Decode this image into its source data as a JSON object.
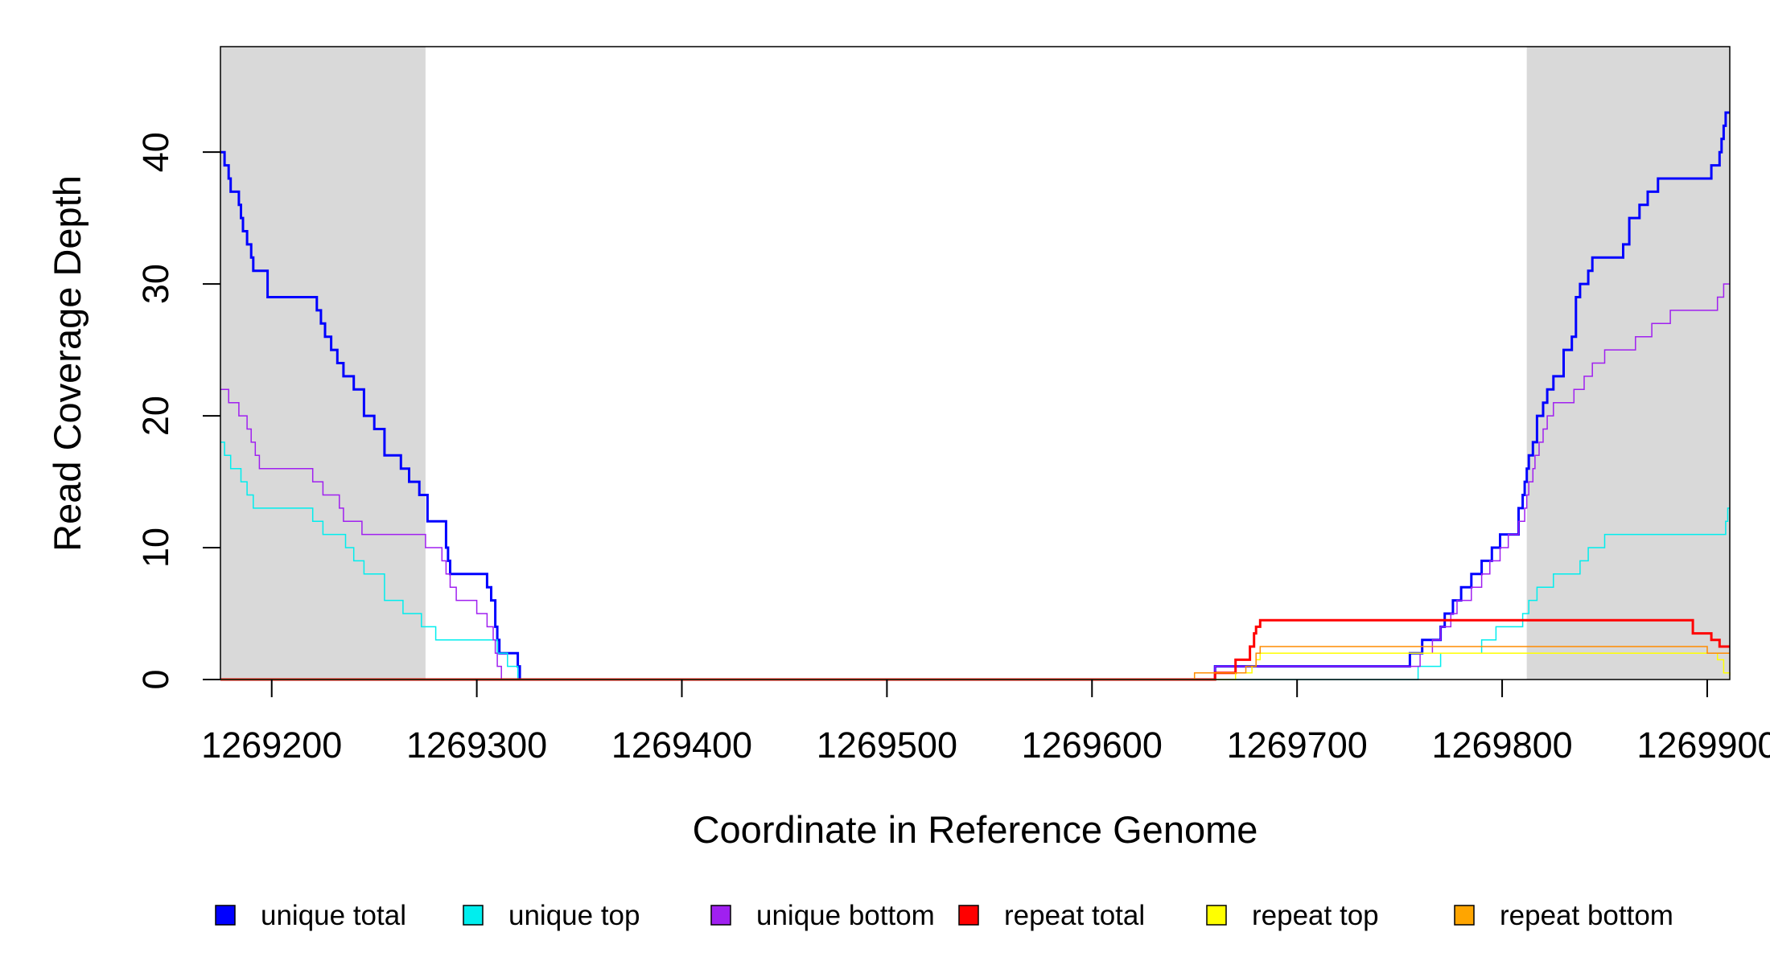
{
  "chart_data": {
    "type": "line",
    "title": "",
    "xlabel": "Coordinate in Reference Genome",
    "ylabel": "Read Coverage Depth",
    "xlim": [
      1269175,
      1269911
    ],
    "ylim": [
      0,
      48
    ],
    "x_ticks": [
      1269200,
      1269300,
      1269400,
      1269500,
      1269600,
      1269700,
      1269800,
      1269900
    ],
    "x_tick_labels": [
      "1269200",
      "1269300",
      "1269400",
      "1269500",
      "1269600",
      "1269700",
      "1269800",
      "1269900"
    ],
    "y_ticks": [
      0,
      10,
      20,
      30,
      40
    ],
    "y_tick_labels": [
      "0",
      "10",
      "20",
      "30",
      "40"
    ],
    "grid": false,
    "legend_position": "bottom",
    "shaded_regions": [
      {
        "x": [
          1269175,
          1269275
        ],
        "color": "#d9d9d9"
      },
      {
        "x": [
          1269812,
          1269911
        ],
        "color": "#d9d9d9"
      }
    ],
    "series": [
      {
        "name": "unique total",
        "color": "#0000ff",
        "width": 3,
        "x": [
          1269175,
          1269177,
          1269178,
          1269179,
          1269180,
          1269184,
          1269185,
          1269186,
          1269188,
          1269190,
          1269191,
          1269193,
          1269198,
          1269220,
          1269222,
          1269224,
          1269226,
          1269229,
          1269232,
          1269235,
          1269240,
          1269245,
          1269250,
          1269253,
          1269255,
          1269263,
          1269267,
          1269272,
          1269276,
          1269285,
          1269286,
          1269287,
          1269289,
          1269305,
          1269307,
          1269309,
          1269310,
          1269311,
          1269312,
          1269320,
          1269321,
          1269322,
          1269650,
          1269660,
          1269670,
          1269700,
          1269750,
          1269755,
          1269761,
          1269770,
          1269772,
          1269776,
          1269780,
          1269785,
          1269790,
          1269795,
          1269799,
          1269808,
          1269810,
          1269811,
          1269812,
          1269813,
          1269815,
          1269817,
          1269820,
          1269822,
          1269825,
          1269830,
          1269834,
          1269836,
          1269838,
          1269842,
          1269844,
          1269859,
          1269862,
          1269867,
          1269871,
          1269876,
          1269891,
          1269902,
          1269906,
          1269907,
          1269908,
          1269909,
          1269910,
          1269911
        ],
        "y": [
          40,
          39,
          39,
          38,
          37,
          36,
          35,
          34,
          33,
          32,
          31,
          31,
          29,
          29,
          28,
          27,
          26,
          25,
          24,
          23,
          22,
          20,
          19,
          19,
          17,
          16,
          15,
          14,
          12,
          10,
          9,
          8,
          8,
          7,
          6,
          4,
          3,
          2,
          2,
          1,
          0,
          0,
          0,
          1,
          1,
          1,
          1,
          2,
          3,
          4,
          5,
          6,
          7,
          8,
          9,
          10,
          11,
          13,
          14,
          15,
          16,
          17,
          18,
          20,
          21,
          22,
          23,
          25,
          26,
          29,
          30,
          31,
          32,
          33,
          35,
          36,
          37,
          38,
          38,
          39,
          40,
          41,
          42,
          43,
          43,
          43
        ]
      },
      {
        "name": "unique top",
        "color": "#00eeee",
        "width": 1.5,
        "x": [
          1269175,
          1269177,
          1269180,
          1269185,
          1269188,
          1269191,
          1269195,
          1269212,
          1269220,
          1269225,
          1269233,
          1269236,
          1269240,
          1269245,
          1269252,
          1269255,
          1269264,
          1269266,
          1269273,
          1269280,
          1269285,
          1269310,
          1269315,
          1269320,
          1269322,
          1269759,
          1269765,
          1269770,
          1269780,
          1269790,
          1269795,
          1269797,
          1269803,
          1269810,
          1269812,
          1269813,
          1269817,
          1269820,
          1269825,
          1269830,
          1269838,
          1269842,
          1269850,
          1269870,
          1269900,
          1269909,
          1269910,
          1269911
        ],
        "y": [
          18,
          17,
          16,
          15,
          14,
          13,
          13,
          13,
          12,
          11,
          11,
          10,
          9,
          8,
          8,
          6,
          5,
          5,
          4,
          3,
          3,
          2,
          1,
          0,
          0,
          1,
          1,
          2,
          2,
          3,
          3,
          4,
          4,
          5,
          5,
          6,
          7,
          7,
          8,
          8,
          9,
          10,
          11,
          11,
          11,
          12,
          13,
          13
        ]
      },
      {
        "name": "unique bottom",
        "color": "#a020f0",
        "width": 1.5,
        "x": [
          1269175,
          1269179,
          1269184,
          1269186,
          1269188,
          1269190,
          1269192,
          1269194,
          1269196,
          1269205,
          1269220,
          1269225,
          1269227,
          1269233,
          1269235,
          1269238,
          1269240,
          1269244,
          1269250,
          1269264,
          1269270,
          1269275,
          1269283,
          1269285,
          1269287,
          1269290,
          1269300,
          1269303,
          1269305,
          1269308,
          1269309,
          1269310,
          1269312,
          1269660,
          1269665,
          1269750,
          1269760,
          1269766,
          1269770,
          1269775,
          1269778,
          1269782,
          1269785,
          1269790,
          1269794,
          1269799,
          1269803,
          1269808,
          1269811,
          1269812,
          1269813,
          1269815,
          1269816,
          1269817,
          1269818,
          1269820,
          1269822,
          1269825,
          1269830,
          1269835,
          1269838,
          1269840,
          1269844,
          1269850,
          1269860,
          1269865,
          1269868,
          1269873,
          1269876,
          1269882,
          1269900,
          1269905,
          1269908,
          1269910,
          1269911
        ],
        "y": [
          22,
          21,
          20,
          20,
          19,
          18,
          17,
          16,
          16,
          16,
          15,
          14,
          14,
          13,
          12,
          12,
          12,
          11,
          11,
          11,
          11,
          10,
          9,
          8,
          7,
          6,
          5,
          5,
          4,
          3,
          2,
          1,
          0,
          1,
          1,
          1,
          2,
          3,
          4,
          5,
          6,
          6,
          7,
          8,
          9,
          10,
          11,
          12,
          13,
          14,
          15,
          16,
          17,
          17,
          18,
          19,
          20,
          21,
          21,
          22,
          22,
          23,
          24,
          25,
          25,
          26,
          26,
          27,
          27,
          28,
          28,
          29,
          30,
          30,
          30
        ]
      },
      {
        "name": "repeat total",
        "color": "#ff0000",
        "width": 3,
        "x": [
          1269175,
          1269650,
          1269660,
          1269670,
          1269677,
          1269679,
          1269680,
          1269682,
          1269684,
          1269893,
          1269902,
          1269906,
          1269911
        ],
        "y": [
          0,
          0,
          0.5,
          1.5,
          2.5,
          3.5,
          4,
          4.5,
          4.5,
          3.5,
          3,
          2.5,
          2.5
        ]
      },
      {
        "name": "repeat top",
        "color": "#ffff00",
        "width": 1.5,
        "x": [
          1269175,
          1269660,
          1269670,
          1269678,
          1269680,
          1269682,
          1269893,
          1269905,
          1269908,
          1269911
        ],
        "y": [
          0,
          0,
          0.5,
          1,
          1.5,
          2,
          2,
          1.5,
          0.5,
          0.3
        ]
      },
      {
        "name": "repeat bottom",
        "color": "#ff8c00",
        "width": 1.5,
        "x": [
          1269175,
          1269650,
          1269660,
          1269675,
          1269680,
          1269682,
          1269893,
          1269900,
          1269911
        ],
        "y": [
          0,
          0.5,
          0.5,
          1,
          2,
          2.5,
          2.5,
          2,
          2
        ]
      }
    ],
    "legend": [
      {
        "label": "unique total",
        "color": "#0000ff"
      },
      {
        "label": "unique top",
        "color": "#00eeee"
      },
      {
        "label": "unique bottom",
        "color": "#a020f0"
      },
      {
        "label": "repeat total",
        "color": "#ff0000"
      },
      {
        "label": "repeat top",
        "color": "#ffff00"
      },
      {
        "label": "repeat bottom",
        "color": "#ffa500"
      }
    ]
  }
}
